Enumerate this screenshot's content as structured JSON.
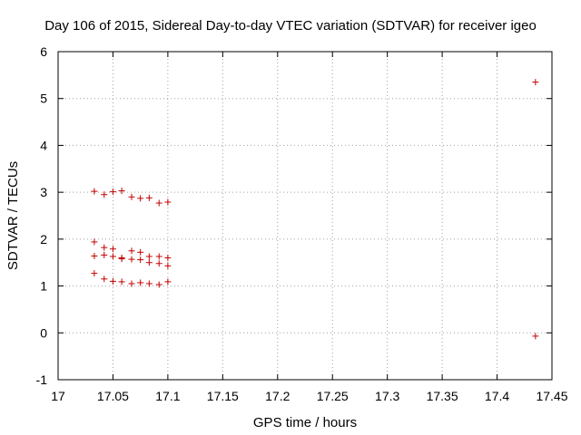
{
  "chart_data": {
    "type": "scatter",
    "title": "Day 106 of 2015, Sidereal Day-to-day VTEC variation (SDTVAR) for receiver igeo",
    "xlabel": "GPS time / hours",
    "ylabel": "SDTVAR / TECUs",
    "xlim": [
      17,
      17.45
    ],
    "ylim": [
      -1,
      6
    ],
    "xticks": [
      "17",
      "17.05",
      "17.1",
      "17.15",
      "17.2",
      "17.25",
      "17.3",
      "17.35",
      "17.4",
      "17.45"
    ],
    "yticks": [
      "-1",
      "0",
      "1",
      "2",
      "3",
      "4",
      "5",
      "6"
    ],
    "grid": true,
    "marker": "+",
    "marker_color": "#c00000",
    "series": [
      {
        "points": [
          [
            17.033,
            3.02
          ],
          [
            17.042,
            2.95
          ],
          [
            17.05,
            3.01
          ],
          [
            17.058,
            3.03
          ],
          [
            17.067,
            2.9
          ],
          [
            17.075,
            2.87
          ],
          [
            17.083,
            2.88
          ],
          [
            17.092,
            2.77
          ],
          [
            17.1,
            2.79
          ],
          [
            17.033,
            1.94
          ],
          [
            17.042,
            1.82
          ],
          [
            17.05,
            1.79
          ],
          [
            17.058,
            1.6
          ],
          [
            17.067,
            1.75
          ],
          [
            17.075,
            1.72
          ],
          [
            17.083,
            1.63
          ],
          [
            17.092,
            1.63
          ],
          [
            17.1,
            1.6
          ],
          [
            17.033,
            1.64
          ],
          [
            17.042,
            1.66
          ],
          [
            17.05,
            1.63
          ],
          [
            17.058,
            1.58
          ],
          [
            17.067,
            1.57
          ],
          [
            17.075,
            1.56
          ],
          [
            17.083,
            1.5
          ],
          [
            17.092,
            1.48
          ],
          [
            17.1,
            1.43
          ],
          [
            17.033,
            1.27
          ],
          [
            17.042,
            1.15
          ],
          [
            17.05,
            1.1
          ],
          [
            17.058,
            1.09
          ],
          [
            17.067,
            1.05
          ],
          [
            17.075,
            1.07
          ],
          [
            17.083,
            1.05
          ],
          [
            17.092,
            1.03
          ],
          [
            17.1,
            1.09
          ],
          [
            17.435,
            5.35
          ],
          [
            17.435,
            -0.07
          ]
        ]
      }
    ]
  }
}
